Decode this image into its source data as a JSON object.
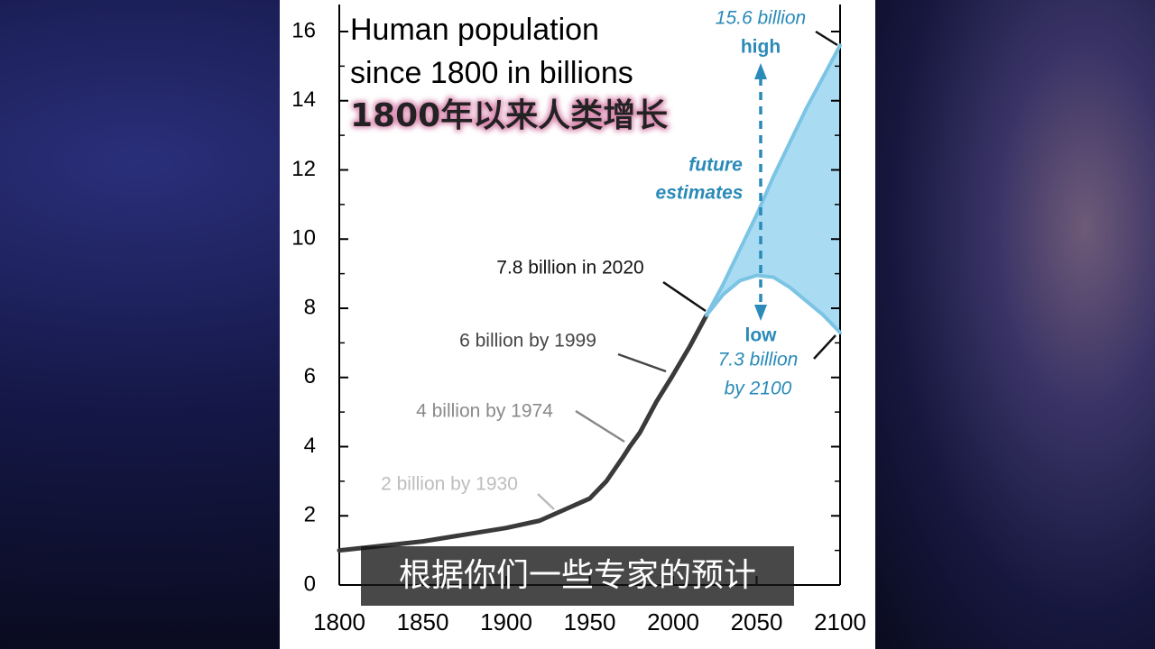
{
  "chart_data": {
    "type": "line",
    "title_lines": [
      "Human population",
      "since 1800 in billions"
    ],
    "series": [
      {
        "color": "#3a3a3a",
        "x": [
          1800,
          1850,
          1900,
          1920,
          1950,
          1960,
          1970,
          1974,
          1980,
          1990,
          1999,
          2010,
          2020
        ],
        "values": [
          1.0,
          1.26,
          1.65,
          1.86,
          2.5,
          3.0,
          3.7,
          4.0,
          4.4,
          5.3,
          6.0,
          6.9,
          7.8
        ]
      },
      {
        "color": "#7cc4e4",
        "x": [
          2020,
          2030,
          2040,
          2050,
          2060,
          2070,
          2080,
          2090,
          2100
        ],
        "values": [
          7.8,
          8.7,
          9.7,
          10.7,
          11.8,
          12.8,
          13.8,
          14.7,
          15.6
        ]
      },
      {
        "color": "#7cc4e4",
        "x": [
          2020,
          2030,
          2040,
          2050,
          2060,
          2070,
          2080,
          2090,
          2100
        ],
        "values": [
          7.8,
          8.4,
          8.8,
          8.95,
          8.9,
          8.6,
          8.2,
          7.8,
          7.3
        ]
      }
    ],
    "band_color": "#a9dcf3",
    "annotations": [
      "15.6 billion",
      "high",
      "future",
      "estimates",
      "low",
      "7.3 billion",
      "by 2100",
      "7.8 billion in 2020",
      "6 billion by 1999",
      "4 billion by 1974",
      "2 billion by 1930"
    ],
    "xlim": [
      1800,
      2100
    ],
    "xticks": [
      1800,
      1850,
      1900,
      1950,
      2000,
      2050,
      2100
    ],
    "ylim": [
      0,
      16
    ],
    "yticks": [
      0,
      2,
      4,
      6,
      8,
      10,
      12,
      14,
      16
    ],
    "yminorticks": [
      1,
      3,
      5,
      7,
      9,
      11,
      13,
      15
    ]
  },
  "overlay_title": "1800年以来人类增长",
  "caption": "根据你们一些专家的预计"
}
